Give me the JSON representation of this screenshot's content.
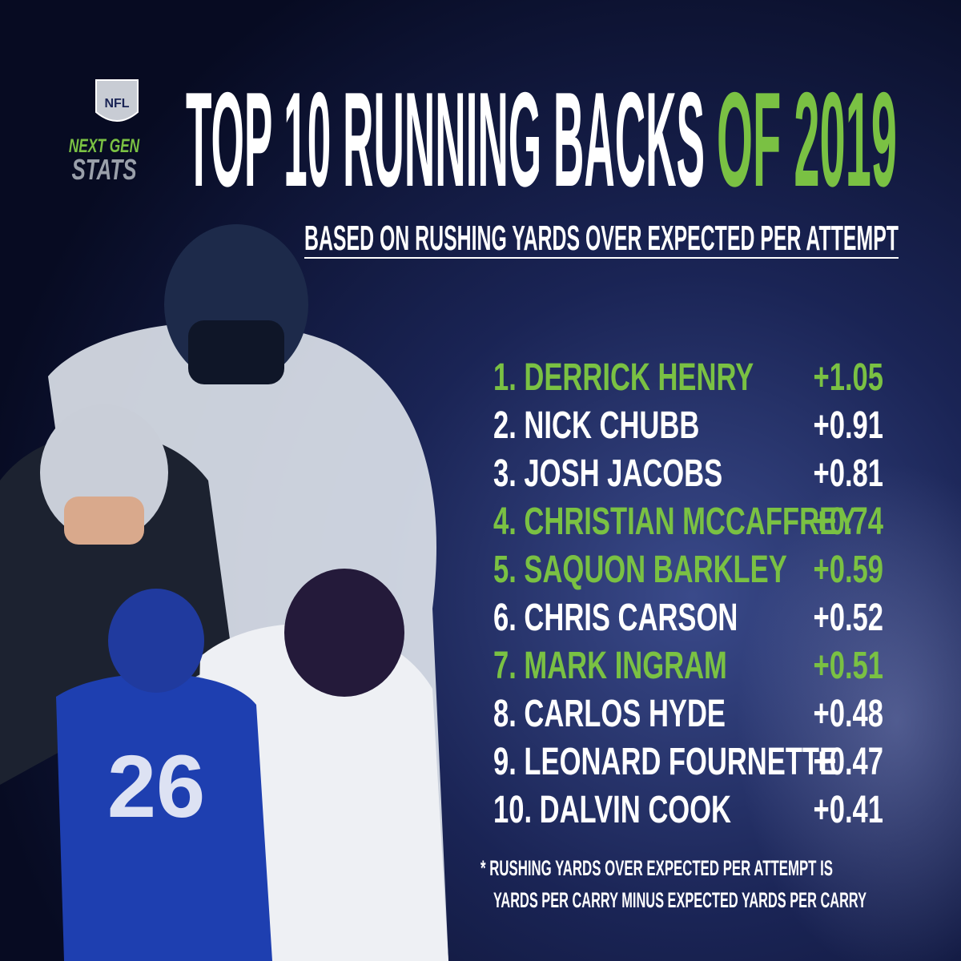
{
  "header": {
    "logo": {
      "badge": "NFL",
      "line1": "NEXT GEN",
      "line2": "STATS"
    },
    "title": {
      "main": "TOP 10 RUNNING BACKS",
      "accent": "OF 2019",
      "accent_color": "#7ac143"
    },
    "subtitle": "BASED ON RUSHING YARDS OVER EXPECTED PER ATTEMPT"
  },
  "list": {
    "rows": [
      {
        "name": "1. DERRICK HENRY",
        "value": "+1.05",
        "color": "#7ac143"
      },
      {
        "name": "2. NICK CHUBB",
        "value": "+0.91",
        "color": "#ffffff"
      },
      {
        "name": "3. JOSH JACOBS",
        "value": "+0.81",
        "color": "#ffffff"
      },
      {
        "name": "4. CHRISTIAN MCCAFFREY",
        "value": "+0.74",
        "color": "#7ac143"
      },
      {
        "name": "5. SAQUON BARKLEY",
        "value": "+0.59",
        "color": "#7ac143"
      },
      {
        "name": "6. CHRIS CARSON",
        "value": "+0.52",
        "color": "#ffffff"
      },
      {
        "name": "7. MARK INGRAM",
        "value": "+0.51",
        "color": "#7ac143"
      },
      {
        "name": "8. CARLOS HYDE",
        "value": "+0.48",
        "color": "#ffffff"
      },
      {
        "name": "9. LEONARD FOURNETTE",
        "value": "+0.47",
        "color": "#ffffff"
      },
      {
        "name": "10. DALVIN COOK",
        "value": "+0.41",
        "color": "#ffffff"
      }
    ]
  },
  "footnote": {
    "lines": [
      "* RUSHING YARDS OVER EXPECTED PER ATTEMPT IS",
      "YARDS PER CARRY MINUS EXPECTED YARDS PER CARRY"
    ]
  }
}
